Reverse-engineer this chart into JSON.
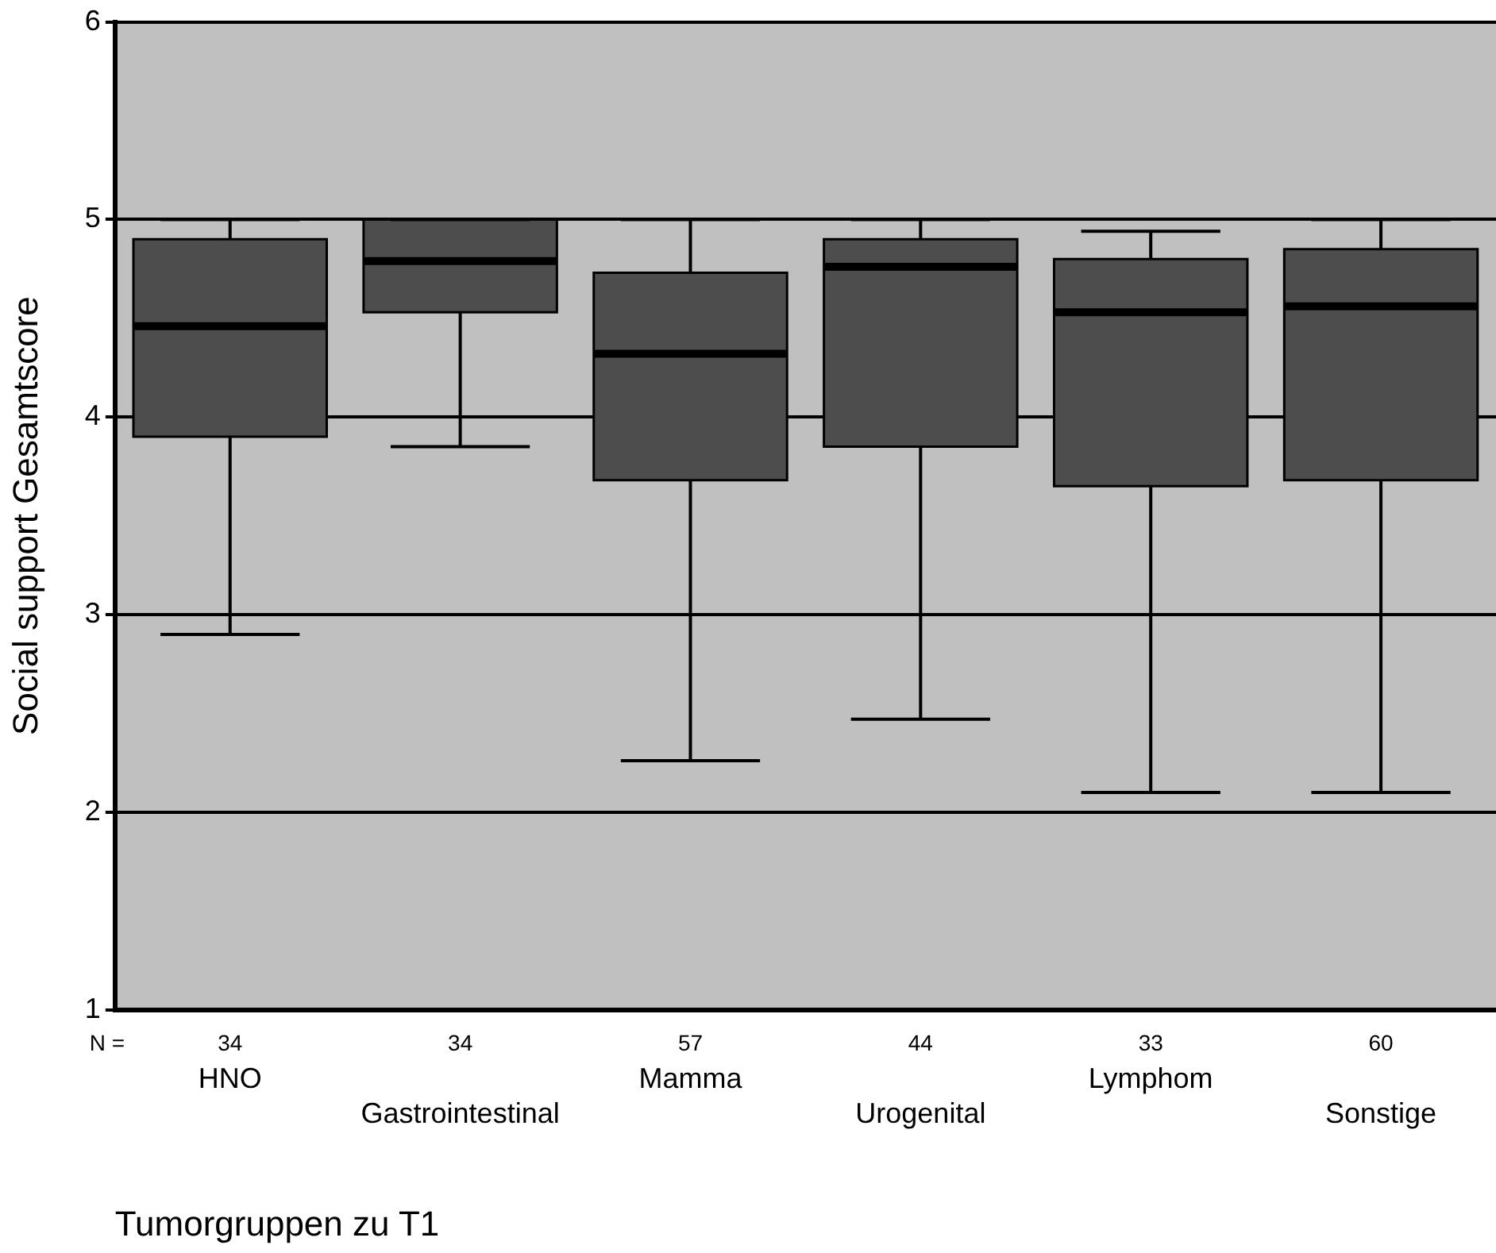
{
  "chart_data": {
    "type": "box",
    "xlabel": "Tumorgruppen zu T1",
    "ylabel": "Social support Gesamtscore",
    "categories": [
      "HNO",
      "Gastrointestinal",
      "Mamma",
      "Urogenital",
      "Lymphom",
      "Sonstige"
    ],
    "series": [
      {
        "color": "#4d4d4d",
        "boxes": [
          {
            "low": 2.9,
            "q1": 3.9,
            "median": 4.46,
            "q3": 4.9,
            "high": 5
          },
          {
            "low": 3.85,
            "q1": 4.53,
            "median": 4.79,
            "q3": 5,
            "high": 5
          },
          {
            "low": 2.26,
            "q1": 3.68,
            "median": 4.32,
            "q3": 4.73,
            "high": 5
          },
          {
            "low": 2.47,
            "q1": 3.85,
            "median": 4.76,
            "q3": 4.9,
            "high": 5
          },
          {
            "low": 2.1,
            "q1": 3.65,
            "median": 4.53,
            "q3": 4.8,
            "high": 4.94
          },
          {
            "low": 2.1,
            "q1": 3.68,
            "median": 4.56,
            "q3": 4.85,
            "high": 5
          }
        ]
      }
    ],
    "ylim": [
      1,
      6
    ],
    "yticks": [
      1,
      2,
      3,
      4,
      5,
      6
    ],
    "grid": "y",
    "legend": false,
    "annotations": [
      "N =",
      "34",
      "34",
      "57",
      "44",
      "33",
      "60"
    ]
  }
}
